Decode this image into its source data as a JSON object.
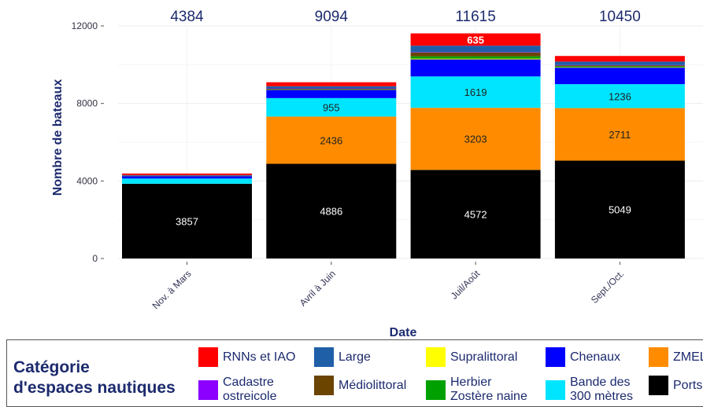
{
  "chart_data": {
    "type": "bar",
    "stacked": true,
    "title": "",
    "xlabel": "Date",
    "ylabel": "Nombre de bateaux",
    "ylim": [
      0,
      12000
    ],
    "yticks": [
      0,
      4000,
      8000,
      12000
    ],
    "grid": true,
    "legend_position": "bottom",
    "categories": [
      "Nov. à Mars",
      "Avril à Juin",
      "Juil/Août",
      "Sept./Oct."
    ],
    "totals": [
      "4384",
      "9094",
      "11615",
      "10450"
    ],
    "series": [
      {
        "name": "Ports",
        "color": "#000000",
        "label_color": "#ffffff",
        "values": [
          3857,
          4886,
          4572,
          5049
        ],
        "labels": [
          "3857",
          "4886",
          "4572",
          "5049"
        ]
      },
      {
        "name": "ZMEL",
        "color": "#ff8c00",
        "label_color": "#222222",
        "values": [
          0,
          2436,
          3203,
          2711
        ],
        "labels": [
          "",
          "2436",
          "3203",
          "2711"
        ]
      },
      {
        "name": "Bande des\n300 mètres",
        "color": "#00e5ff",
        "label_color": "#222222",
        "values": [
          270,
          955,
          1619,
          1236
        ],
        "labels": [
          "",
          "955",
          "1619",
          "1236"
        ]
      },
      {
        "name": "Chenaux",
        "color": "#0000ff",
        "label_color": "#ffffff",
        "values": [
          120,
          430,
          880,
          850
        ],
        "labels": [
          "",
          "",
          "",
          ""
        ]
      },
      {
        "name": "Supralittoral",
        "color": "#ffff00",
        "label_color": "#222222",
        "values": [
          0,
          10,
          40,
          20
        ],
        "labels": [
          "",
          "",
          "",
          ""
        ]
      },
      {
        "name": "Herbier\nZostère naine",
        "color": "#00a000",
        "label_color": "#ffffff",
        "values": [
          0,
          10,
          120,
          50
        ],
        "labels": [
          "",
          "",
          "",
          ""
        ]
      },
      {
        "name": "Médiolittoral",
        "color": "#6b4400",
        "label_color": "#ffffff",
        "values": [
          20,
          40,
          200,
          50
        ],
        "labels": [
          "",
          "",
          "",
          ""
        ]
      },
      {
        "name": "Cadastre\nostreicole",
        "color": "#8b00ff",
        "label_color": "#ffffff",
        "values": [
          0,
          10,
          16,
          14
        ],
        "labels": [
          "",
          "",
          "",
          ""
        ]
      },
      {
        "name": "Large",
        "color": "#1f5fa8",
        "label_color": "#ffffff",
        "values": [
          40,
          110,
          330,
          180
        ],
        "labels": [
          "",
          "",
          "",
          ""
        ]
      },
      {
        "name": "RNNs et IAO",
        "color": "#ff0000",
        "label_color": "#ffffff",
        "values": [
          77,
          207,
          635,
          290
        ],
        "labels": [
          "",
          "",
          "635",
          ""
        ]
      }
    ]
  },
  "legend": {
    "title": "Catégorie\nd'espaces nautiques",
    "items": [
      {
        "label": "RNNs et IAO",
        "color": "#ff0000"
      },
      {
        "label": "Large",
        "color": "#1f5fa8"
      },
      {
        "label": "Supralittoral",
        "color": "#ffff00"
      },
      {
        "label": "Chenaux",
        "color": "#0000ff"
      },
      {
        "label": "ZMEL",
        "color": "#ff8c00"
      },
      {
        "label": "Cadastre\nostreicole",
        "color": "#8b00ff"
      },
      {
        "label": "Médiolittoral",
        "color": "#6b4400"
      },
      {
        "label": "Herbier\nZostère naine",
        "color": "#00a000"
      },
      {
        "label": "Bande des\n300 mètres",
        "color": "#00e5ff"
      },
      {
        "label": "Ports",
        "color": "#000000"
      }
    ]
  }
}
